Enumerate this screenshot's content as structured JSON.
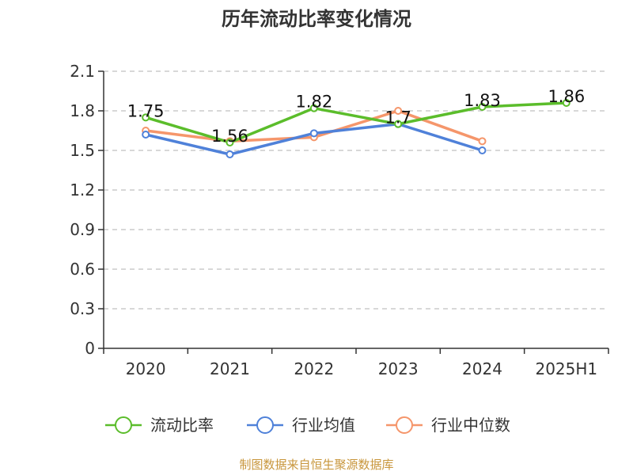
{
  "chart_data": {
    "type": "line",
    "title": "历年流动比率变化情况",
    "categories": [
      "2020",
      "2021",
      "2022",
      "2023",
      "2024",
      "2025H1"
    ],
    "ylim": [
      0,
      2.1
    ],
    "yticks": [
      "0",
      "0.3",
      "0.6",
      "0.9",
      "1.2",
      "1.5",
      "1.8",
      "2.1"
    ],
    "grid": true,
    "legend_position": "bottom",
    "series": [
      {
        "name": "流动比率",
        "color": "#5bbd2b",
        "values": [
          1.75,
          1.56,
          1.82,
          1.7,
          1.83,
          1.86
        ],
        "labels": [
          "1.75",
          "1.56",
          "1.82",
          "1.7",
          "1.83",
          "1.86"
        ]
      },
      {
        "name": "行业均值",
        "color": "#4f81d9",
        "values": [
          1.62,
          1.47,
          1.63,
          1.7,
          1.5,
          null
        ]
      },
      {
        "name": "行业中位数",
        "color": "#f5966b",
        "values": [
          1.65,
          1.57,
          1.6,
          1.8,
          1.57,
          null
        ]
      }
    ]
  },
  "source": "制图数据来自恒生聚源数据库"
}
